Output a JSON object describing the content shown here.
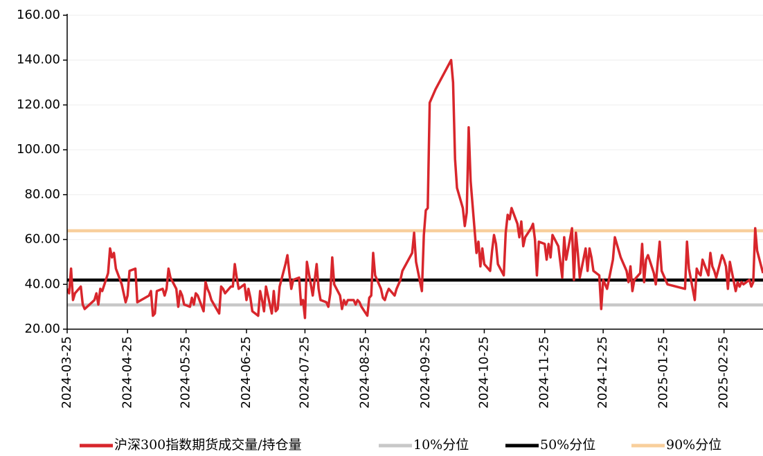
{
  "chart_data": {
    "type": "line",
    "x": [
      "2024-03-25",
      "2024-03-26",
      "2024-03-27",
      "2024-03-28",
      "2024-03-29",
      "2024-04-01",
      "2024-04-02",
      "2024-04-03",
      "2024-04-08",
      "2024-04-09",
      "2024-04-10",
      "2024-04-11",
      "2024-04-12",
      "2024-04-15",
      "2024-04-16",
      "2024-04-17",
      "2024-04-18",
      "2024-04-19",
      "2024-04-22",
      "2024-04-23",
      "2024-04-24",
      "2024-04-25",
      "2024-04-26",
      "2024-04-29",
      "2024-04-30",
      "2024-05-06",
      "2024-05-07",
      "2024-05-08",
      "2024-05-09",
      "2024-05-10",
      "2024-05-13",
      "2024-05-14",
      "2024-05-15",
      "2024-05-16",
      "2024-05-17",
      "2024-05-20",
      "2024-05-21",
      "2024-05-22",
      "2024-05-23",
      "2024-05-24",
      "2024-05-27",
      "2024-05-28",
      "2024-05-29",
      "2024-05-30",
      "2024-05-31",
      "2024-06-03",
      "2024-06-04",
      "2024-06-05",
      "2024-06-06",
      "2024-06-07",
      "2024-06-11",
      "2024-06-12",
      "2024-06-13",
      "2024-06-14",
      "2024-06-17",
      "2024-06-18",
      "2024-06-19",
      "2024-06-20",
      "2024-06-21",
      "2024-06-24",
      "2024-06-25",
      "2024-06-26",
      "2024-06-27",
      "2024-06-28",
      "2024-07-01",
      "2024-07-02",
      "2024-07-03",
      "2024-07-04",
      "2024-07-05",
      "2024-07-08",
      "2024-07-09",
      "2024-07-10",
      "2024-07-11",
      "2024-07-12",
      "2024-07-15",
      "2024-07-16",
      "2024-07-17",
      "2024-07-18",
      "2024-07-19",
      "2024-07-22",
      "2024-07-23",
      "2024-07-24",
      "2024-07-25",
      "2024-07-26",
      "2024-07-29",
      "2024-07-30",
      "2024-07-31",
      "2024-08-01",
      "2024-08-02",
      "2024-08-05",
      "2024-08-06",
      "2024-08-07",
      "2024-08-08",
      "2024-08-09",
      "2024-08-12",
      "2024-08-13",
      "2024-08-14",
      "2024-08-15",
      "2024-08-16",
      "2024-08-19",
      "2024-08-20",
      "2024-08-21",
      "2024-08-22",
      "2024-08-23",
      "2024-08-26",
      "2024-08-27",
      "2024-08-28",
      "2024-08-29",
      "2024-08-30",
      "2024-09-02",
      "2024-09-03",
      "2024-09-04",
      "2024-09-05",
      "2024-09-06",
      "2024-09-09",
      "2024-09-10",
      "2024-09-11",
      "2024-09-12",
      "2024-09-13",
      "2024-09-18",
      "2024-09-19",
      "2024-09-20",
      "2024-09-23",
      "2024-09-24",
      "2024-09-25",
      "2024-09-26",
      "2024-09-27",
      "2024-09-30",
      "2024-10-08",
      "2024-10-09",
      "2024-10-10",
      "2024-10-11",
      "2024-10-14",
      "2024-10-15",
      "2024-10-16",
      "2024-10-17",
      "2024-10-18",
      "2024-10-21",
      "2024-10-22",
      "2024-10-23",
      "2024-10-24",
      "2024-10-25",
      "2024-10-28",
      "2024-10-29",
      "2024-10-30",
      "2024-10-31",
      "2024-11-01",
      "2024-11-04",
      "2024-11-05",
      "2024-11-06",
      "2024-11-07",
      "2024-11-08",
      "2024-11-11",
      "2024-11-12",
      "2024-11-13",
      "2024-11-14",
      "2024-11-15",
      "2024-11-18",
      "2024-11-19",
      "2024-11-20",
      "2024-11-21",
      "2024-11-22",
      "2024-11-25",
      "2024-11-26",
      "2024-11-27",
      "2024-11-28",
      "2024-11-29",
      "2024-12-02",
      "2024-12-03",
      "2024-12-04",
      "2024-12-05",
      "2024-12-06",
      "2024-12-09",
      "2024-12-10",
      "2024-12-11",
      "2024-12-12",
      "2024-12-13",
      "2024-12-16",
      "2024-12-17",
      "2024-12-18",
      "2024-12-19",
      "2024-12-20",
      "2024-12-23",
      "2024-12-24",
      "2024-12-25",
      "2024-12-26",
      "2024-12-27",
      "2024-12-30",
      "2024-12-31",
      "2025-01-02",
      "2025-01-03",
      "2025-01-06",
      "2025-01-07",
      "2025-01-08",
      "2025-01-09",
      "2025-01-10",
      "2025-01-13",
      "2025-01-14",
      "2025-01-15",
      "2025-01-16",
      "2025-01-17",
      "2025-01-20",
      "2025-01-21",
      "2025-01-22",
      "2025-01-23",
      "2025-01-24",
      "2025-01-27",
      "2025-02-05",
      "2025-02-06",
      "2025-02-07",
      "2025-02-10",
      "2025-02-11",
      "2025-02-12",
      "2025-02-13",
      "2025-02-14",
      "2025-02-17",
      "2025-02-18",
      "2025-02-19",
      "2025-02-20",
      "2025-02-21",
      "2025-02-24",
      "2025-02-25",
      "2025-02-26",
      "2025-02-27",
      "2025-02-28",
      "2025-03-03",
      "2025-03-04",
      "2025-03-05",
      "2025-03-06",
      "2025-03-07",
      "2025-03-10",
      "2025-03-11",
      "2025-03-12",
      "2025-03-13",
      "2025-03-14",
      "2025-03-17"
    ],
    "series": [
      {
        "name": "沪深300指数期货成交量/持仓量",
        "color": "#d8262c",
        "values": [
          38,
          36,
          47,
          33,
          36,
          39,
          31,
          29,
          33,
          36,
          31,
          38,
          37,
          45,
          56,
          52,
          54,
          47,
          40,
          36,
          32,
          35,
          46,
          47,
          32,
          35,
          37,
          26,
          27,
          37,
          38,
          35,
          38,
          47,
          43,
          38,
          30,
          37,
          35,
          31,
          30,
          34,
          31,
          36,
          35,
          28,
          41,
          38,
          36,
          33,
          27,
          39,
          38,
          36,
          39,
          39,
          49,
          43,
          38,
          40,
          33,
          38,
          34,
          28,
          26,
          37,
          33,
          28,
          39,
          27,
          37,
          28,
          29,
          39,
          49,
          53,
          45,
          38,
          42,
          43,
          31,
          33,
          25,
          50,
          35,
          42,
          49,
          38,
          33,
          32,
          30,
          36,
          52,
          40,
          35,
          29,
          33,
          31,
          33,
          33,
          31,
          33,
          32,
          30,
          26,
          34,
          35,
          54,
          44,
          38,
          34,
          33,
          36,
          38,
          35,
          38,
          40,
          42,
          46,
          54,
          63,
          50,
          37,
          62,
          73,
          74,
          121,
          127,
          140,
          130,
          96,
          83,
          74,
          66,
          72,
          110,
          86,
          54,
          59,
          48,
          56,
          49,
          46,
          55,
          62,
          58,
          49,
          44,
          63,
          71,
          69,
          74,
          67,
          61,
          68,
          57,
          61,
          65,
          67,
          60,
          44,
          59,
          58,
          51,
          58,
          52,
          62,
          57,
          50,
          43,
          61,
          51,
          65,
          42,
          63,
          54,
          43,
          56,
          46,
          56,
          52,
          46,
          44,
          29,
          42,
          40,
          38,
          51,
          61,
          55,
          52,
          46,
          41,
          48,
          37,
          42,
          45,
          58,
          41,
          51,
          53,
          45,
          40,
          50,
          59,
          46,
          40,
          38,
          59,
          47,
          33,
          47,
          45,
          44,
          51,
          44,
          54,
          48,
          46,
          43,
          53,
          51,
          48,
          38,
          50,
          37,
          41,
          39,
          41,
          40,
          42,
          39,
          41,
          65,
          55,
          45
        ]
      }
    ],
    "reference_lines": [
      {
        "name": "10%分位",
        "color": "#c8c8c8",
        "value": 30.8
      },
      {
        "name": "50%分位",
        "color": "#000000",
        "value": 41.9
      },
      {
        "name": "90%分位",
        "color": "#f8cf9c",
        "value": 63.9
      }
    ],
    "xlim": [
      "2024-03-25",
      "2025-03-17"
    ],
    "xticks": [
      "2024-03-25",
      "2024-04-25",
      "2024-05-25",
      "2024-06-25",
      "2024-07-25",
      "2024-08-25",
      "2024-09-25",
      "2024-10-25",
      "2024-11-25",
      "2024-12-25",
      "2025-01-25",
      "2025-02-25"
    ],
    "ylim": [
      20,
      160
    ],
    "yticks": [
      {
        "value": 20,
        "label": "20.00"
      },
      {
        "value": 40,
        "label": "40.00"
      },
      {
        "value": 60,
        "label": "60.00"
      },
      {
        "value": 80,
        "label": "80.00"
      },
      {
        "value": 100,
        "label": "100.00"
      },
      {
        "value": 120,
        "label": "120.00"
      },
      {
        "value": 140,
        "label": "140.00"
      },
      {
        "value": 160,
        "label": "160.00"
      }
    ],
    "grid": true,
    "legend": "bottom"
  }
}
